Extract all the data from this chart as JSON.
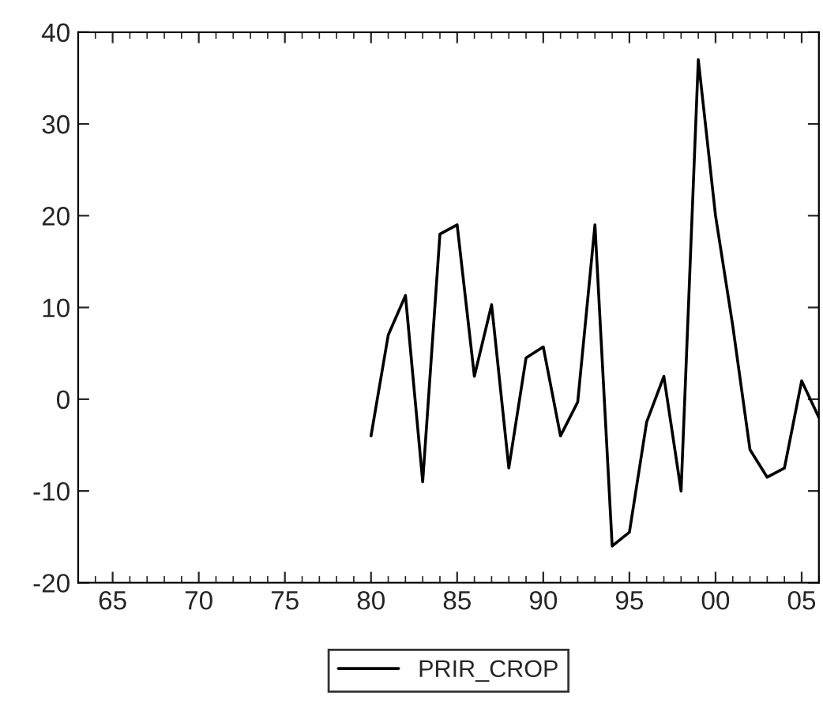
{
  "chart_data": {
    "type": "line",
    "x": [
      1980,
      1981,
      1982,
      1983,
      1984,
      1985,
      1986,
      1987,
      1988,
      1989,
      1990,
      1991,
      1992,
      1993,
      1994,
      1995,
      1996,
      1997,
      1998,
      1999,
      2000,
      2001,
      2002,
      2003,
      2004,
      2005,
      2006
    ],
    "series": [
      {
        "name": "PRIR_CROP",
        "color": "#000000",
        "values": [
          -4,
          7,
          11.3,
          -9,
          18,
          19,
          2.5,
          10.3,
          -7.5,
          4.5,
          5.7,
          -4,
          -0.3,
          19,
          -16,
          -14.5,
          -2.5,
          2.5,
          -10,
          37,
          20,
          8,
          -5.5,
          -8.5,
          -7.5,
          2,
          -2
        ]
      }
    ],
    "xlim": [
      1963,
      2006
    ],
    "xticks": [
      {
        "value": 1965,
        "label": "65"
      },
      {
        "value": 1970,
        "label": "70"
      },
      {
        "value": 1975,
        "label": "75"
      },
      {
        "value": 1980,
        "label": "80"
      },
      {
        "value": 1985,
        "label": "85"
      },
      {
        "value": 1990,
        "label": "90"
      },
      {
        "value": 1995,
        "label": "95"
      },
      {
        "value": 2000,
        "label": "00"
      },
      {
        "value": 2005,
        "label": "05"
      }
    ],
    "ylim": [
      -20,
      40
    ],
    "yticks": [
      -20,
      -10,
      0,
      10,
      20,
      30,
      40
    ],
    "grid": false,
    "legend": "bottom",
    "marker": "none",
    "line_style": "solid"
  }
}
